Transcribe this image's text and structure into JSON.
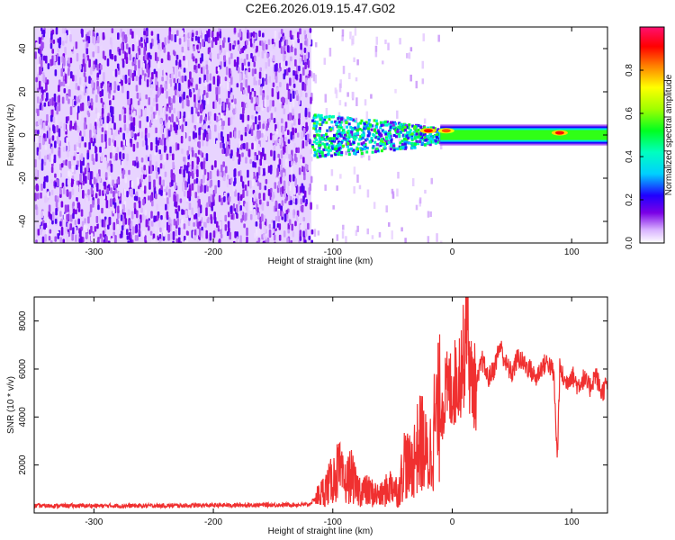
{
  "figure": {
    "title": "C2E6.2026.019.15.47.G02"
  },
  "chart_data": [
    {
      "type": "heatmap",
      "xlabel": "Height of straight line (km)",
      "ylabel": "Frequency (Hz)",
      "xlim": [
        -350,
        130
      ],
      "ylim": [
        -50,
        50
      ],
      "x_ticks": [
        -300,
        -200,
        -100,
        0,
        100
      ],
      "y_ticks": [
        -40,
        -20,
        0,
        20,
        40
      ],
      "colorbar": {
        "label": "Normalized spectral amplitude",
        "range": [
          0.0,
          1.0
        ],
        "ticks": [
          "0.0",
          "0.2",
          "0.4",
          "0.6",
          "0.8"
        ],
        "tick_values": [
          0.0,
          0.2,
          0.4,
          0.6,
          0.8
        ]
      },
      "regions": [
        {
          "x_range": [
            -350,
            -118
          ],
          "freq_range": [
            -50,
            50
          ],
          "amplitude": 0.1,
          "pattern": "noise"
        },
        {
          "x_range": [
            -118,
            -10
          ],
          "freq_range": [
            -10,
            10
          ],
          "amplitude": 0.45,
          "pattern": "scattered"
        },
        {
          "x_range": [
            -10,
            130
          ],
          "freq_range": [
            -4,
            4
          ],
          "amplitude": 0.55,
          "pattern": "band"
        }
      ],
      "peaks": [
        {
          "x": -20,
          "freq": 2,
          "amplitude": 0.9
        },
        {
          "x": -5,
          "freq": 2,
          "amplitude": 0.85
        },
        {
          "x": 90,
          "freq": 1,
          "amplitude": 0.9
        }
      ],
      "grid": false,
      "legend": "none"
    },
    {
      "type": "line",
      "xlabel": "Height of straight line (km)",
      "ylabel": "SNR (10 * v/v)",
      "xlim": [
        -350,
        130
      ],
      "ylim": [
        0,
        9000
      ],
      "x_ticks": [
        -300,
        -200,
        -100,
        0,
        100
      ],
      "y_ticks": [
        2000,
        4000,
        6000,
        8000
      ],
      "series": [
        {
          "color": "#f03030",
          "x": [
            -350,
            -300,
            -250,
            -200,
            -150,
            -120,
            -110,
            -100,
            -95,
            -90,
            -85,
            -80,
            -70,
            -60,
            -50,
            -45,
            -40,
            -35,
            -30,
            -25,
            -20,
            -15,
            -10,
            -5,
            0,
            5,
            10,
            12,
            15,
            20,
            25,
            30,
            35,
            40,
            45,
            50,
            55,
            60,
            65,
            70,
            75,
            80,
            85,
            88,
            90,
            95,
            100,
            105,
            110,
            115,
            120,
            125,
            130
          ],
          "y": [
            300,
            300,
            300,
            320,
            340,
            350,
            800,
            1400,
            1800,
            1200,
            1600,
            1000,
            900,
            700,
            1200,
            800,
            2200,
            1800,
            2600,
            3000,
            2000,
            3600,
            4400,
            5000,
            5200,
            5700,
            6600,
            9000,
            5600,
            5200,
            6400,
            5600,
            6000,
            7000,
            6200,
            5800,
            6500,
            6200,
            6000,
            5600,
            6100,
            6300,
            5800,
            2200,
            6000,
            5400,
            5800,
            5300,
            5600,
            5200,
            5800,
            5000,
            5400
          ]
        }
      ],
      "grid": false,
      "legend": "none"
    }
  ]
}
